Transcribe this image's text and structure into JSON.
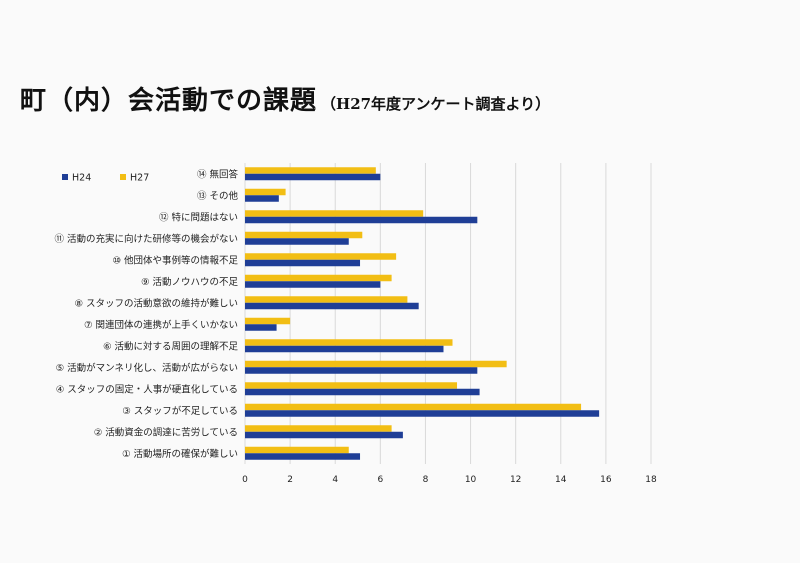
{
  "title": "町（内）会活動での課題",
  "subtitle": "（H27年度アンケート調査より）",
  "colors": {
    "H24": "#1f3e96",
    "H27": "#f2be14",
    "grid": "#d9d9d9"
  },
  "chart_data": {
    "type": "bar",
    "orientation": "horizontal",
    "title": "",
    "xlabel": "",
    "ylabel": "",
    "xlim": [
      0,
      18
    ],
    "xticks": [
      0,
      2,
      4,
      6,
      8,
      10,
      12,
      14,
      16,
      18
    ],
    "grid": true,
    "legend": "top-left",
    "categories": [
      "⑭ 無回答",
      "⑬ その他",
      "⑫ 特に問題はない",
      "⑪ 活動の充実に向けた研修等の機会がない",
      "⑩ 他団体や事例等の情報不足",
      "⑨ 活動ノウハウの不足",
      "⑧ スタッフの活動意欲の維持が難しい",
      "⑦ 関連団体の連携が上手くいかない",
      "⑥ 活動に対する周囲の理解不足",
      "⑤ 活動がマンネリ化し、活動が広がらない",
      "④ スタッフの固定・人事が硬直化している",
      "③ スタッフが不足している",
      "② 活動資金の調達に苦労している",
      "① 活動場所の確保が難しい"
    ],
    "series": [
      {
        "name": "H24",
        "values": [
          6.0,
          1.5,
          10.3,
          4.6,
          5.1,
          6.0,
          7.7,
          1.4,
          8.8,
          10.3,
          10.4,
          15.7,
          7.0,
          5.1
        ]
      },
      {
        "name": "H27",
        "values": [
          5.8,
          1.8,
          7.9,
          5.2,
          6.7,
          6.5,
          7.2,
          2.0,
          9.2,
          11.6,
          9.4,
          14.9,
          6.5,
          4.6
        ]
      }
    ]
  }
}
